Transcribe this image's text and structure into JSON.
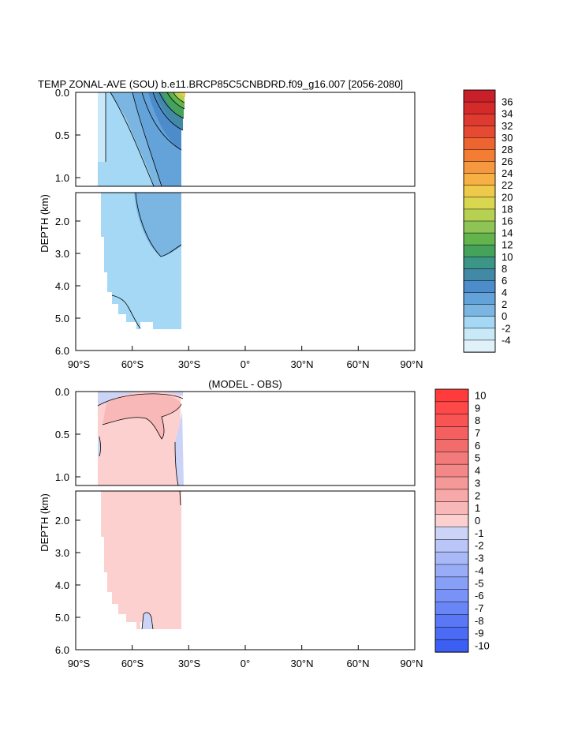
{
  "chart_data": [
    {
      "type": "heatmap",
      "title": "TEMP ZONAL-AVE (SOU) b.e11.BRCP85C5CNBDRD.f09_g16.007 [2056-2080]",
      "ylabel": "DEPTH (km)",
      "xticks": [
        "90°S",
        "60°S",
        "30°S",
        "0°",
        "30°N",
        "60°N",
        "90°N"
      ],
      "x_range": [
        -90,
        90
      ],
      "upper_yticks": [
        "0.0",
        "0.5",
        "1.0"
      ],
      "lower_yticks": [
        "2.0",
        "3.0",
        "4.0",
        "5.0",
        "6.0"
      ],
      "upper_ylim": [
        0,
        1.1
      ],
      "lower_ylim": [
        1.2,
        6.0
      ],
      "colorbar": {
        "labels": [
          "36",
          "34",
          "32",
          "30",
          "28",
          "26",
          "24",
          "22",
          "20",
          "18",
          "16",
          "14",
          "12",
          "10",
          "8",
          "6",
          "4",
          "2",
          "0",
          "-2",
          "-4"
        ],
        "colors": [
          "#c8202a",
          "#d52a2a",
          "#df3a2f",
          "#e64a32",
          "#ee6430",
          "#f27d33",
          "#f59840",
          "#f7b043",
          "#efc94a",
          "#d9d750",
          "#b6d052",
          "#8dc455",
          "#64b44e",
          "#45a25a",
          "#3c9687",
          "#4289a6",
          "#4c8cca",
          "#63a3d9",
          "#7bb6e2",
          "#a4d8f4",
          "#c9e9f8",
          "#e0f1fa"
        ]
      }
    },
    {
      "type": "heatmap",
      "title": "(MODEL - OBS)",
      "ylabel": "DEPTH (km)",
      "xticks": [
        "90°S",
        "60°S",
        "30°S",
        "0°",
        "30°N",
        "60°N",
        "90°N"
      ],
      "x_range": [
        -90,
        90
      ],
      "upper_yticks": [
        "0.0",
        "0.5",
        "1.0"
      ],
      "lower_yticks": [
        "2.0",
        "3.0",
        "4.0",
        "5.0",
        "6.0"
      ],
      "upper_ylim": [
        0,
        1.1
      ],
      "lower_ylim": [
        1.2,
        6.0
      ],
      "colorbar": {
        "labels": [
          "10",
          "9",
          "8",
          "7",
          "6",
          "5",
          "4",
          "3",
          "2",
          "1",
          "0",
          "-1",
          "-2",
          "-3",
          "-4",
          "-5",
          "-6",
          "-7",
          "-8",
          "-9",
          "-10"
        ],
        "colors": [
          "#ff3b3b",
          "#ff4848",
          "#f95454",
          "#f46060",
          "#f26c6c",
          "#f27a7a",
          "#f48888",
          "#f59898",
          "#f7a8a8",
          "#f9b8b8",
          "#fdd0d0",
          "#cbd4f7",
          "#bac6f7",
          "#a9b9f7",
          "#98acf7",
          "#879ff7",
          "#7892f7",
          "#6985f6",
          "#5a78f5",
          "#4b6bf4",
          "#3c5ef2"
        ]
      }
    }
  ]
}
